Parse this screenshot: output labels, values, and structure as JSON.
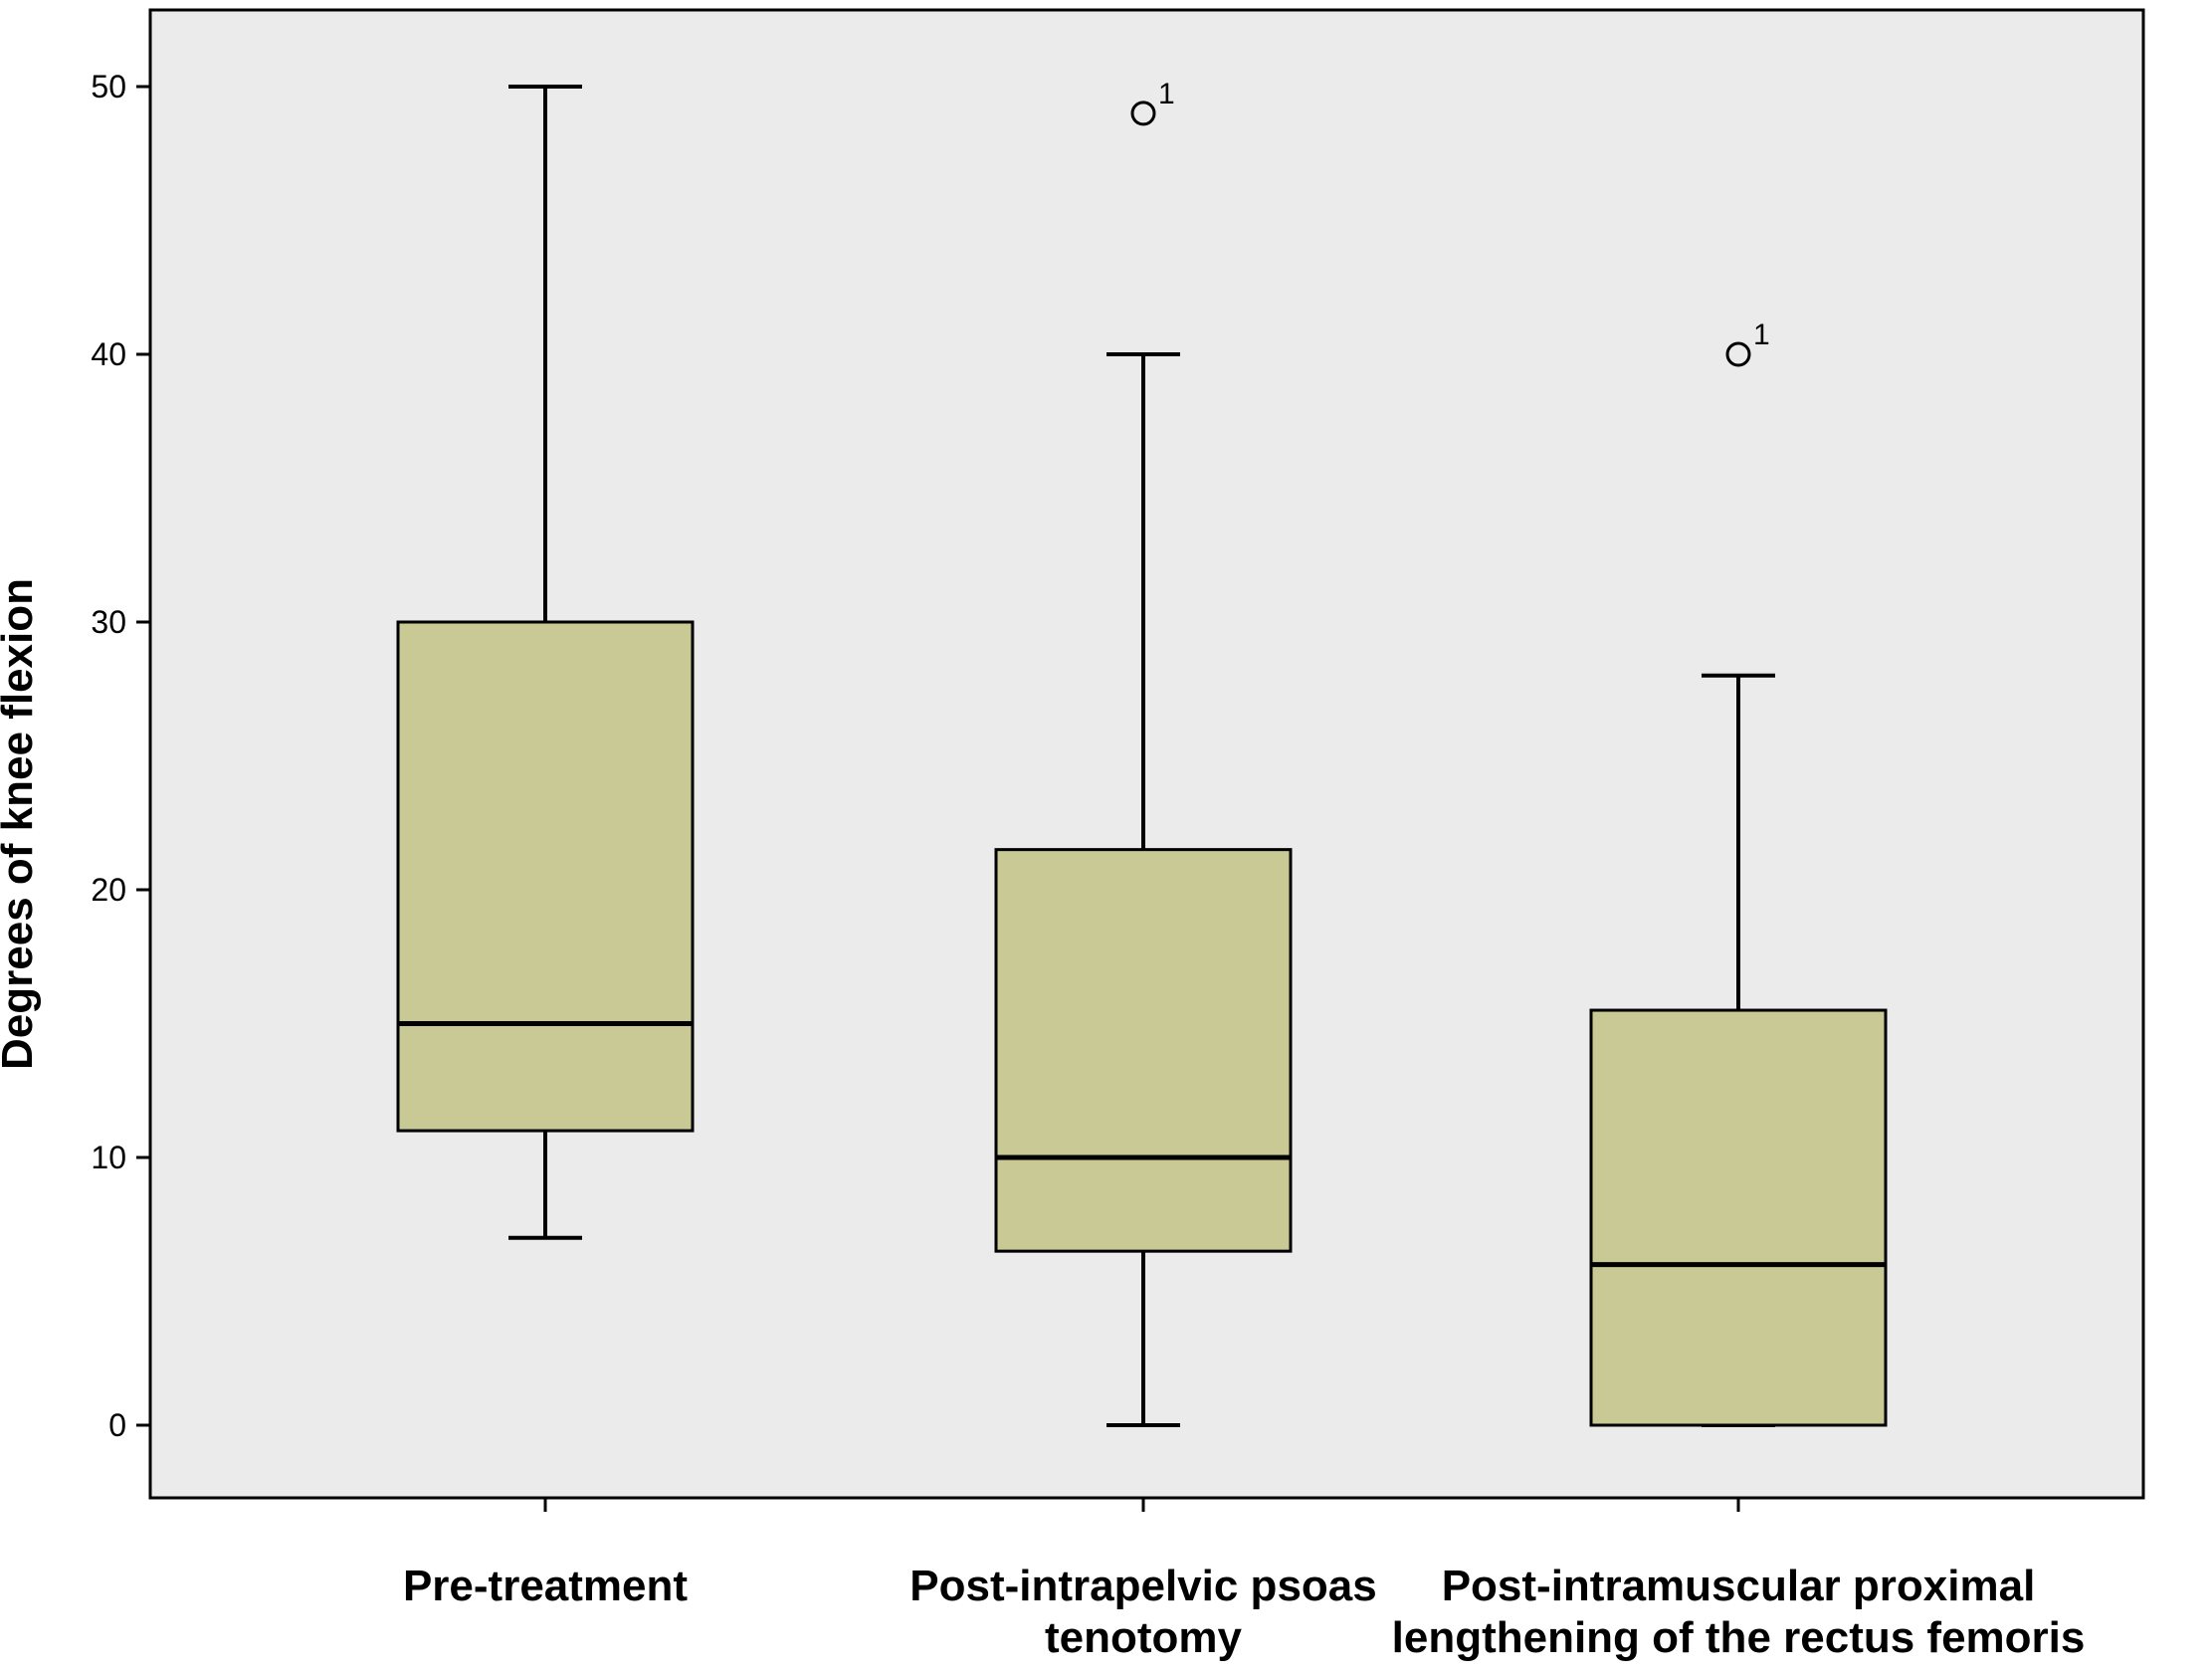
{
  "chart_data": {
    "type": "box",
    "title": "",
    "ylabel": "Degrees of knee flexion",
    "xlabel": "",
    "ylim": [
      -2.8,
      52.8
    ],
    "yticks": [
      0,
      10,
      20,
      30,
      40,
      50
    ],
    "yticklabels": [
      "0",
      "10",
      "20",
      "30",
      "40",
      "50"
    ],
    "grid": false,
    "legend": "none",
    "categories": [
      [
        "Pre-treatment"
      ],
      [
        "Post-intrapelvic psoas",
        "tenotomy"
      ],
      [
        "Post-intramuscular proximal",
        "lengthening of the rectus femoris"
      ]
    ],
    "boxes": [
      {
        "whisker_low": 7,
        "q1": 11,
        "median": 15,
        "q3": 30,
        "whisker_high": 50,
        "outliers": []
      },
      {
        "whisker_low": 0,
        "q1": 6.5,
        "median": 10,
        "q3": 21.5,
        "whisker_high": 40,
        "outliers": [
          {
            "value": 49,
            "label": "1"
          }
        ]
      },
      {
        "whisker_low": 0,
        "q1": 0,
        "median": 6,
        "q3": 15.5,
        "whisker_high": 28,
        "outliers": [
          {
            "value": 40,
            "label": "1"
          }
        ]
      }
    ],
    "colors": {
      "plot_background": "#ebebeb",
      "box_fill": "#c8c994",
      "stroke": "#000000"
    }
  }
}
